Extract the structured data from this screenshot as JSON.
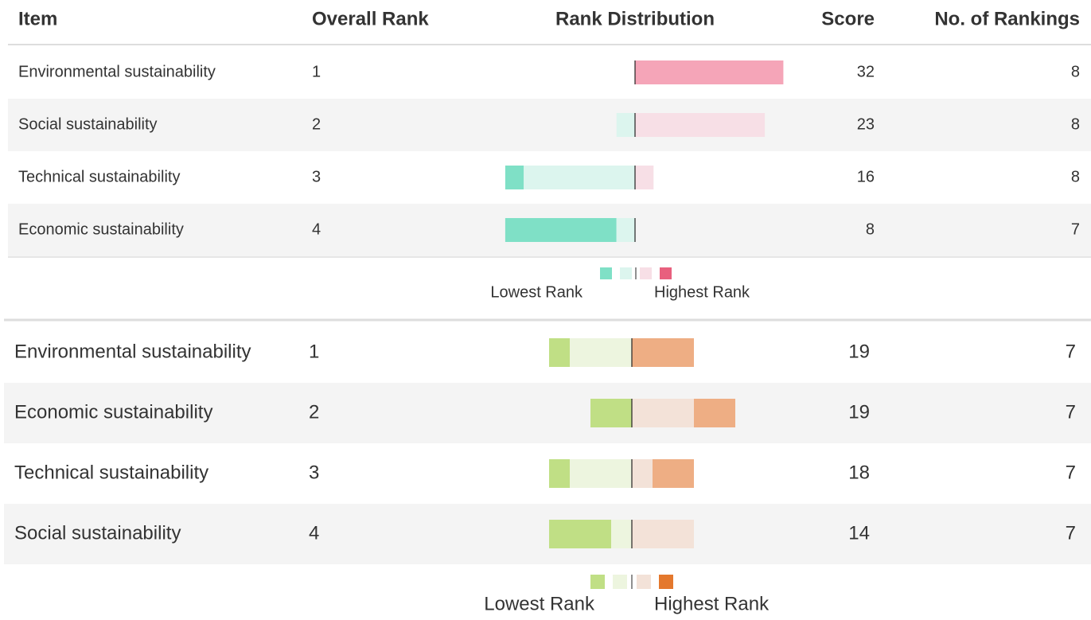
{
  "header": {
    "item": "Item",
    "overall_rank": "Overall Rank",
    "rank_distribution": "Rank Distribution",
    "score": "Score",
    "rankings": "No. of Rankings"
  },
  "tables": [
    {
      "colors": [
        "#7fe0c6",
        "#dcf5ee",
        "#f7dfe6",
        "#f5a5b8"
      ],
      "legend": {
        "low": "Lowest Rank",
        "high": "Highest Rank"
      },
      "rows": [
        {
          "item": "Environmental sustainability",
          "rank": 1,
          "distribution": [
            0,
            0,
            0,
            8
          ],
          "score": 32,
          "count": 8
        },
        {
          "item": "Social sustainability",
          "rank": 2,
          "distribution": [
            0,
            1,
            7,
            0
          ],
          "score": 23,
          "count": 8
        },
        {
          "item": "Technical sustainability",
          "rank": 3,
          "distribution": [
            1,
            6,
            1,
            0
          ],
          "score": 16,
          "count": 8
        },
        {
          "item": "Economic sustainability",
          "rank": 4,
          "distribution": [
            6,
            1,
            0,
            0
          ],
          "score": 8,
          "count": 7
        }
      ]
    },
    {
      "colors": [
        "#c0df85",
        "#edf5df",
        "#f3e2d8",
        "#eeae84"
      ],
      "legend": {
        "low": "Lowest Rank",
        "high": "Highest Rank"
      },
      "rows": [
        {
          "item": "Environmental sustainability",
          "rank": 1,
          "distribution": [
            1,
            3,
            0,
            3
          ],
          "score": 19,
          "count": 7
        },
        {
          "item": "Economic sustainability",
          "rank": 2,
          "distribution": [
            2,
            0,
            3,
            2
          ],
          "score": 19,
          "count": 7
        },
        {
          "item": "Technical sustainability",
          "rank": 3,
          "distribution": [
            1,
            3,
            1,
            2
          ],
          "score": 18,
          "count": 7
        },
        {
          "item": "Social sustainability",
          "rank": 4,
          "distribution": [
            3,
            1,
            3,
            0
          ],
          "score": 14,
          "count": 7
        }
      ]
    }
  ]
}
